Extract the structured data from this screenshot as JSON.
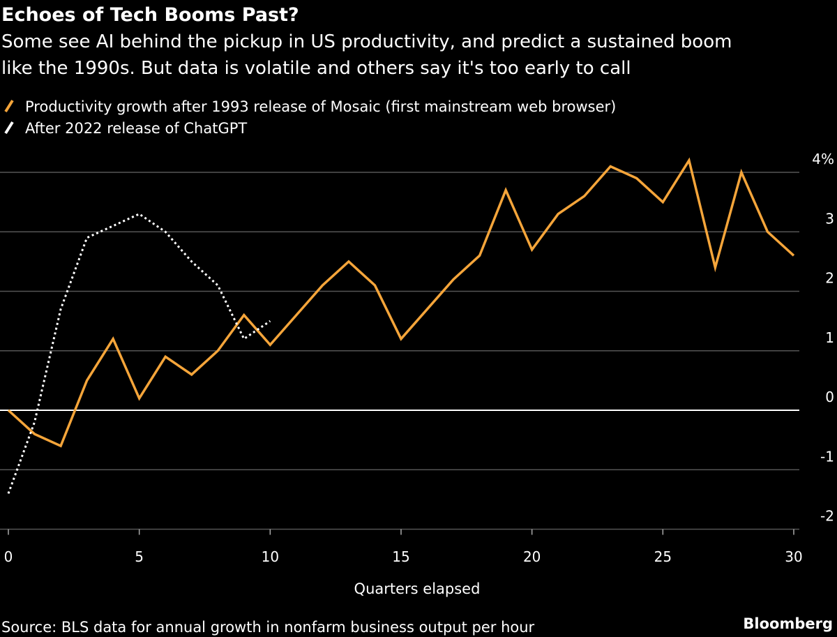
{
  "chart_data": {
    "type": "line",
    "title": "Echoes of Tech Booms Past?",
    "subtitle": [
      "Some see AI behind the pickup in US productivity, and predict a sustained boom",
      "like the 1990s. But data is volatile and others say it's too early to call"
    ],
    "x_label": "Quarters elapsed",
    "source": "Source: BLS data for annual growth in nonfarm business output per hour",
    "brand": "Bloomberg",
    "x": [
      0,
      1,
      2,
      3,
      4,
      5,
      6,
      7,
      8,
      9,
      10,
      11,
      12,
      13,
      14,
      15,
      16,
      17,
      18,
      19,
      20,
      21,
      22,
      23,
      24,
      25,
      26,
      27,
      28,
      29,
      30
    ],
    "series": [
      {
        "name": "Productivity growth after 1993 release of Mosaic (first mainstream web browser)",
        "color": "#f5a53a",
        "line_style": "solid",
        "values": [
          0,
          -0.4,
          -0.6,
          0.5,
          1.2,
          0.2,
          0.9,
          0.6,
          1.0,
          1.6,
          1.1,
          1.6,
          2.1,
          2.5,
          2.1,
          1.2,
          1.7,
          2.2,
          2.6,
          3.7,
          2.7,
          3.3,
          3.6,
          4.1,
          3.9,
          3.5,
          4.2,
          2.4,
          4.0,
          3.0,
          2.6
        ]
      },
      {
        "name": "After 2022 release of ChatGPT",
        "color": "#ffffff",
        "line_style": "dotted",
        "values": [
          -1.4,
          -0.2,
          1.7,
          2.9,
          3.1,
          3.3,
          3.0,
          2.5,
          2.1,
          1.2,
          1.5,
          null,
          null,
          null,
          null,
          null,
          null,
          null,
          null,
          null,
          null,
          null,
          null,
          null,
          null,
          null,
          null,
          null,
          null,
          null,
          null
        ]
      }
    ],
    "xlim": [
      0,
      30
    ],
    "xticks": [
      0,
      5,
      10,
      15,
      20,
      25,
      30
    ],
    "ylim": [
      -2,
      4
    ],
    "yticks": [
      -2,
      -1,
      0,
      1,
      2,
      3,
      {
        "value": 4,
        "label": "4%"
      }
    ],
    "grid": true,
    "zero_line_color": "#ffffff",
    "grid_color": "#555555"
  }
}
